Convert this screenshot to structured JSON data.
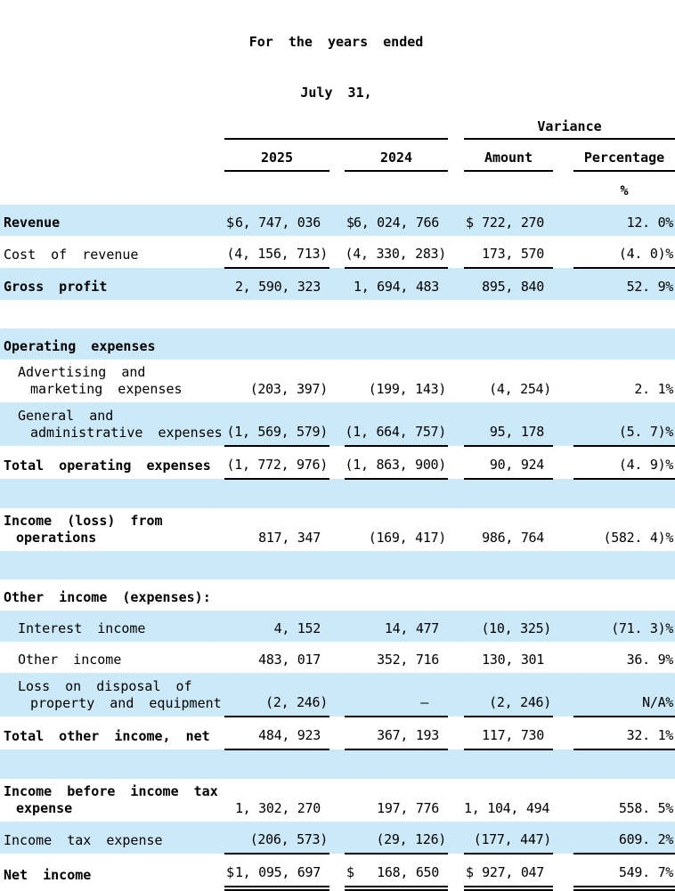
{
  "colors": {
    "stripe_blue": "#cce9fa",
    "text": "#000000",
    "rule": "#000000"
  },
  "currency_symbol": "$",
  "header": {
    "period_group_line1": "For the years ended",
    "period_group_line2": "July 31,",
    "variance_group": "Variance",
    "columns": [
      "2025",
      "2024",
      "Amount",
      "Percentage"
    ],
    "percent_symbol": "%"
  },
  "rows": [
    {
      "label_lines": [
        "Revenue"
      ],
      "bold": true,
      "indent": 0,
      "dollars": true,
      "values": [
        "6, 747, 036",
        "6, 024, 766",
        "722, 270",
        "12. 0%"
      ],
      "underline": "none"
    },
    {
      "label_lines": [
        "Cost of revenue"
      ],
      "bold": false,
      "indent": 0,
      "dollars": false,
      "values": [
        "(4, 156, 713)",
        "(4, 330, 283)",
        "173, 570",
        "(4. 0)%"
      ],
      "underline": "single"
    },
    {
      "label_lines": [
        "Gross profit"
      ],
      "bold": true,
      "indent": 0,
      "dollars": false,
      "values": [
        "2, 590, 323",
        "1, 694, 483",
        "895, 840",
        "52. 9%"
      ],
      "underline": "none"
    },
    {
      "blank": true,
      "label_lines": [],
      "values": [
        "",
        "",
        "",
        ""
      ],
      "underline": "none"
    },
    {
      "label_lines": [
        "Operating expenses"
      ],
      "bold": true,
      "indent": 0,
      "dollars": false,
      "values": [
        "",
        "",
        "",
        ""
      ],
      "underline": "none"
    },
    {
      "label_lines": [
        "Advertising and",
        "marketing expenses"
      ],
      "bold": false,
      "indent": 1,
      "dollars": false,
      "values": [
        "(203, 397)",
        "(199, 143)",
        "(4, 254)",
        "2. 1%"
      ],
      "underline": "none"
    },
    {
      "label_lines": [
        "General and",
        "administrative expenses"
      ],
      "bold": false,
      "indent": 1,
      "dollars": false,
      "values": [
        "(1, 569, 579)",
        "(1, 664, 757)",
        "95, 178",
        "(5. 7)%"
      ],
      "underline": "single"
    },
    {
      "label_lines": [
        "Total operating expenses"
      ],
      "bold": true,
      "indent": 0,
      "dollars": false,
      "values": [
        "(1, 772, 976)",
        "(1, 863, 900)",
        "90, 924",
        "(4. 9)%"
      ],
      "underline": "single"
    },
    {
      "blank": true,
      "label_lines": [],
      "values": [
        "",
        "",
        "",
        ""
      ],
      "underline": "none"
    },
    {
      "label_lines": [
        "Income (loss) from",
        "operations"
      ],
      "bold": true,
      "indent": 0,
      "dollars": false,
      "values": [
        "817, 347",
        "(169, 417)",
        "986, 764",
        "(582. 4)%"
      ],
      "underline": "none"
    },
    {
      "blank": true,
      "label_lines": [],
      "values": [
        "",
        "",
        "",
        ""
      ],
      "underline": "none"
    },
    {
      "label_lines": [
        "Other income (expenses):"
      ],
      "bold": true,
      "indent": 0,
      "dollars": false,
      "values": [
        "",
        "",
        "",
        ""
      ],
      "underline": "none"
    },
    {
      "label_lines": [
        "Interest income"
      ],
      "bold": false,
      "indent": 1,
      "dollars": false,
      "values": [
        "4, 152",
        "14, 477",
        "(10, 325)",
        "(71. 3)%"
      ],
      "underline": "none"
    },
    {
      "label_lines": [
        "Other income"
      ],
      "bold": false,
      "indent": 1,
      "dollars": false,
      "values": [
        "483, 017",
        "352, 716",
        "130, 301",
        "36. 9%"
      ],
      "underline": "none"
    },
    {
      "label_lines": [
        "Loss on disposal of",
        "property and equipment"
      ],
      "bold": false,
      "indent": 1,
      "dollars": false,
      "values": [
        "(2, 246)",
        "—",
        "(2, 246)",
        "N/A%"
      ],
      "underline": "single"
    },
    {
      "label_lines": [
        "Total other income, net"
      ],
      "bold": true,
      "indent": 0,
      "dollars": false,
      "values": [
        "484, 923",
        "367, 193",
        "117, 730",
        "32. 1%"
      ],
      "underline": "single"
    },
    {
      "blank": true,
      "label_lines": [],
      "values": [
        "",
        "",
        "",
        ""
      ],
      "underline": "none"
    },
    {
      "label_lines": [
        "Income before income tax",
        "expense"
      ],
      "bold": true,
      "indent": 0,
      "dollars": false,
      "values": [
        "1, 302, 270",
        "197, 776",
        "1, 104, 494",
        "558. 5%"
      ],
      "underline": "none"
    },
    {
      "label_lines": [
        "Income tax expense"
      ],
      "bold": false,
      "indent": 0,
      "dollars": false,
      "values": [
        "(206, 573)",
        "(29, 126)",
        "(177, 447)",
        "609. 2%"
      ],
      "underline": "single"
    },
    {
      "label_lines": [
        "Net income"
      ],
      "bold": true,
      "indent": 0,
      "dollars": true,
      "values": [
        "1, 095, 697",
        "168, 650",
        "927, 047",
        "549. 7%"
      ],
      "underline": "double"
    }
  ]
}
